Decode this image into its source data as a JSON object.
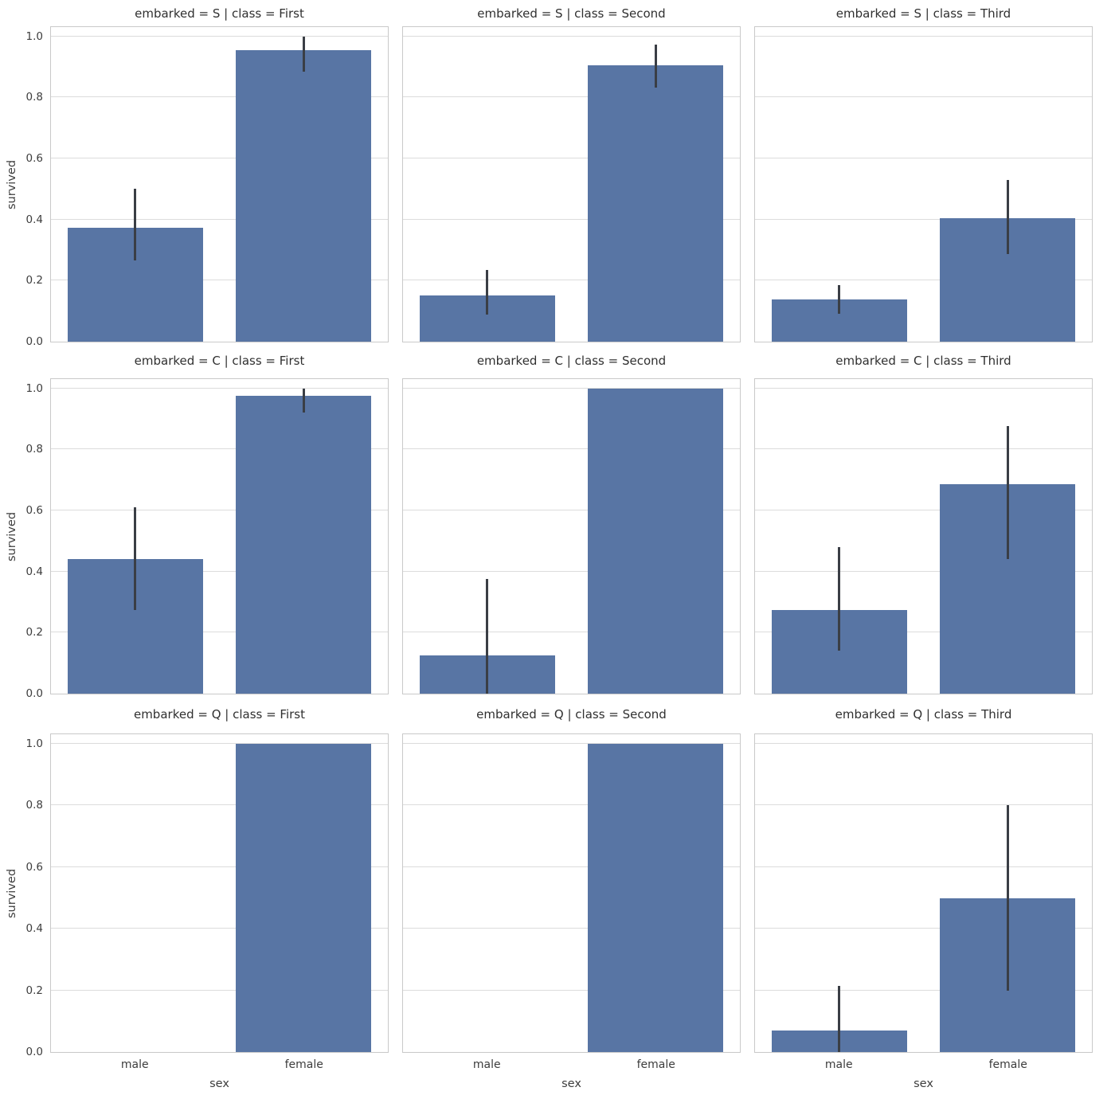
{
  "chart_data": {
    "type": "bar",
    "title": "",
    "facet": {
      "row_var": "embarked",
      "row_values": [
        "S",
        "C",
        "Q"
      ],
      "col_var": "class",
      "col_values": [
        "First",
        "Second",
        "Third"
      ]
    },
    "xlabel": "sex",
    "ylabel": "survived",
    "categories": [
      "male",
      "female"
    ],
    "yticks": [
      "0.0",
      "0.2",
      "0.4",
      "0.6",
      "0.8",
      "1.0"
    ],
    "ylim": [
      0,
      1.03
    ],
    "grid": true,
    "legend_position": "none",
    "panels": [
      {
        "title": "embarked = S | class = First",
        "bars": [
          {
            "category": "male",
            "value": 0.372,
            "err_lo": 0.266,
            "err_hi": 0.5
          },
          {
            "category": "female",
            "value": 0.954,
            "err_lo": 0.885,
            "err_hi": 1.0
          }
        ]
      },
      {
        "title": "embarked = S | class = Second",
        "bars": [
          {
            "category": "male",
            "value": 0.152,
            "err_lo": 0.088,
            "err_hi": 0.235
          },
          {
            "category": "female",
            "value": 0.906,
            "err_lo": 0.833,
            "err_hi": 0.974
          }
        ]
      },
      {
        "title": "embarked = S | class = Third",
        "bars": [
          {
            "category": "male",
            "value": 0.138,
            "err_lo": 0.091,
            "err_hi": 0.186
          },
          {
            "category": "female",
            "value": 0.405,
            "err_lo": 0.287,
            "err_hi": 0.53
          }
        ]
      },
      {
        "title": "embarked = C | class = First",
        "bars": [
          {
            "category": "male",
            "value": 0.442,
            "err_lo": 0.275,
            "err_hi": 0.61
          },
          {
            "category": "female",
            "value": 0.976,
            "err_lo": 0.92,
            "err_hi": 1.0
          }
        ]
      },
      {
        "title": "embarked = C | class = Second",
        "bars": [
          {
            "category": "male",
            "value": 0.125,
            "err_lo": 0.0,
            "err_hi": 0.375
          },
          {
            "category": "female",
            "value": 1.0,
            "err_lo": null,
            "err_hi": null
          }
        ]
      },
      {
        "title": "embarked = C | class = Third",
        "bars": [
          {
            "category": "male",
            "value": 0.275,
            "err_lo": 0.14,
            "err_hi": 0.48
          },
          {
            "category": "female",
            "value": 0.685,
            "err_lo": 0.44,
            "err_hi": 0.876
          }
        ]
      },
      {
        "title": "embarked = Q | class = First",
        "bars": [
          {
            "category": "male",
            "value": 0.0,
            "err_lo": null,
            "err_hi": null
          },
          {
            "category": "female",
            "value": 1.0,
            "err_lo": null,
            "err_hi": null
          }
        ]
      },
      {
        "title": "embarked = Q | class = Second",
        "bars": [
          {
            "category": "male",
            "value": 0.0,
            "err_lo": null,
            "err_hi": null
          },
          {
            "category": "female",
            "value": 1.0,
            "err_lo": null,
            "err_hi": null
          }
        ]
      },
      {
        "title": "embarked = Q | class = Third",
        "bars": [
          {
            "category": "male",
            "value": 0.07,
            "err_lo": 0.0,
            "err_hi": 0.215
          },
          {
            "category": "female",
            "value": 0.498,
            "err_lo": 0.2,
            "err_hi": 0.8
          }
        ]
      }
    ],
    "colors": {
      "bar": "#5875A4",
      "error_bar": "#3a3e45",
      "grid_line": "#dcdcdc",
      "spine": "#c9c9c9",
      "title_text": "#303030",
      "tick_text": "#3d3d3d",
      "background": "#ffffff"
    }
  }
}
